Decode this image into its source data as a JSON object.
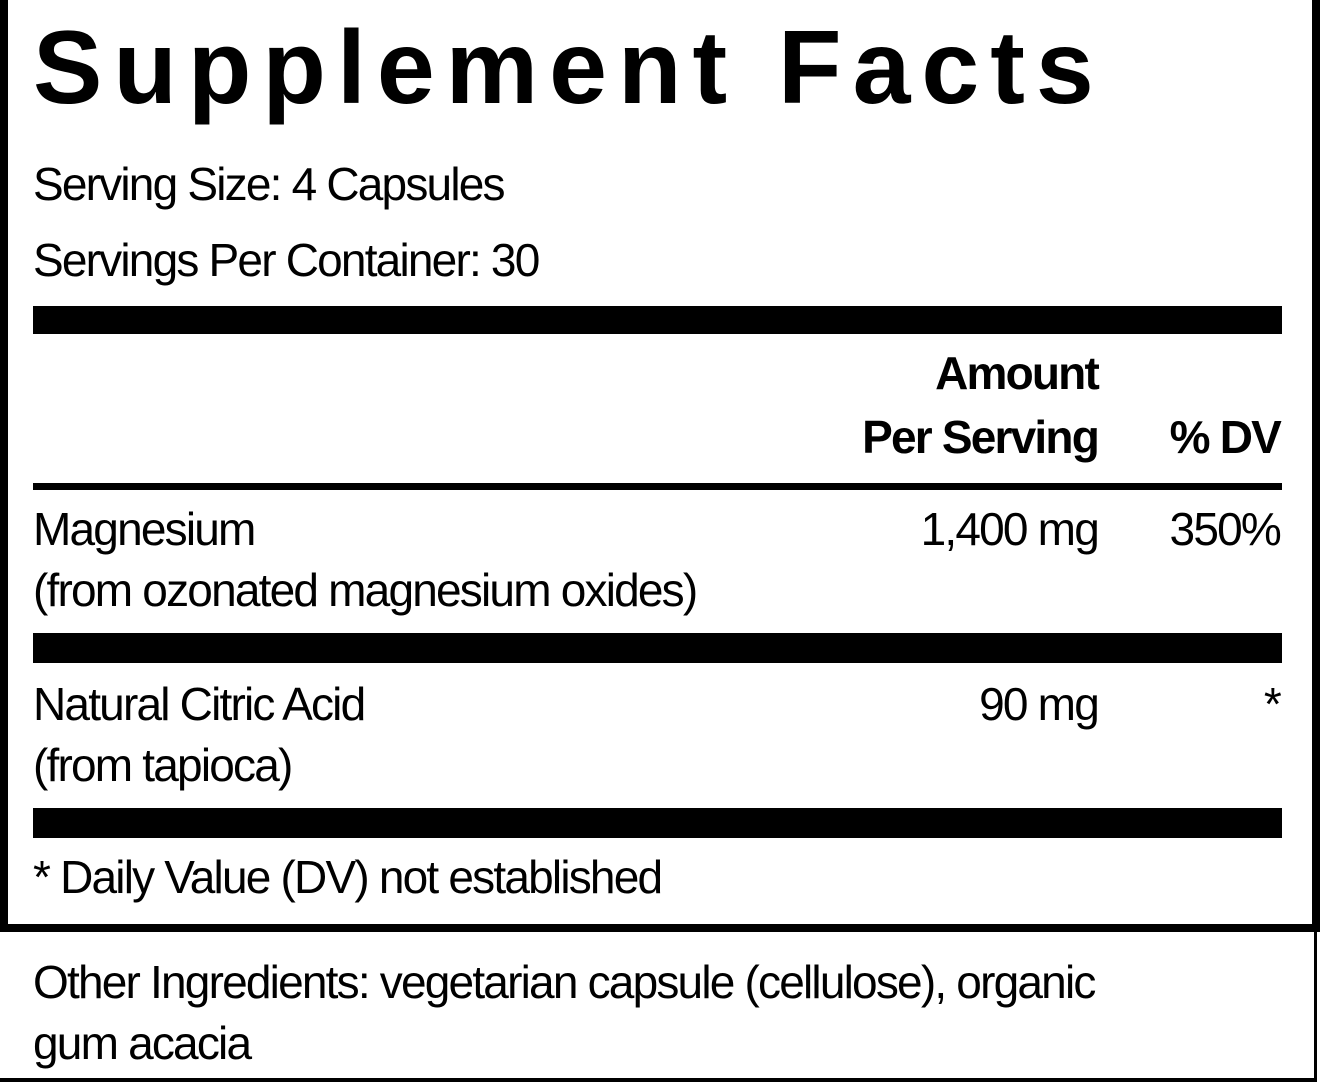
{
  "title": "Supplement Facts",
  "serving_size": "Serving Size: 4 Capsules",
  "servings_per_container": "Servings Per Container: 30",
  "header": {
    "amount_line1": "Amount",
    "amount_line2": "Per Serving",
    "dv": "% DV"
  },
  "rows": [
    {
      "name": "Magnesium",
      "source": "(from ozonated magnesium oxides)",
      "amount": "1,400 mg",
      "dv": "350%"
    },
    {
      "name": "Natural Citric Acid",
      "source": "(from tapioca)",
      "amount": "90 mg",
      "dv": "*"
    }
  ],
  "footnote": "* Daily Value (DV) not established",
  "other_ingredients_line1": "Other Ingredients: vegetarian capsule (cellulose), organic",
  "other_ingredients_line2": "gum acacia"
}
